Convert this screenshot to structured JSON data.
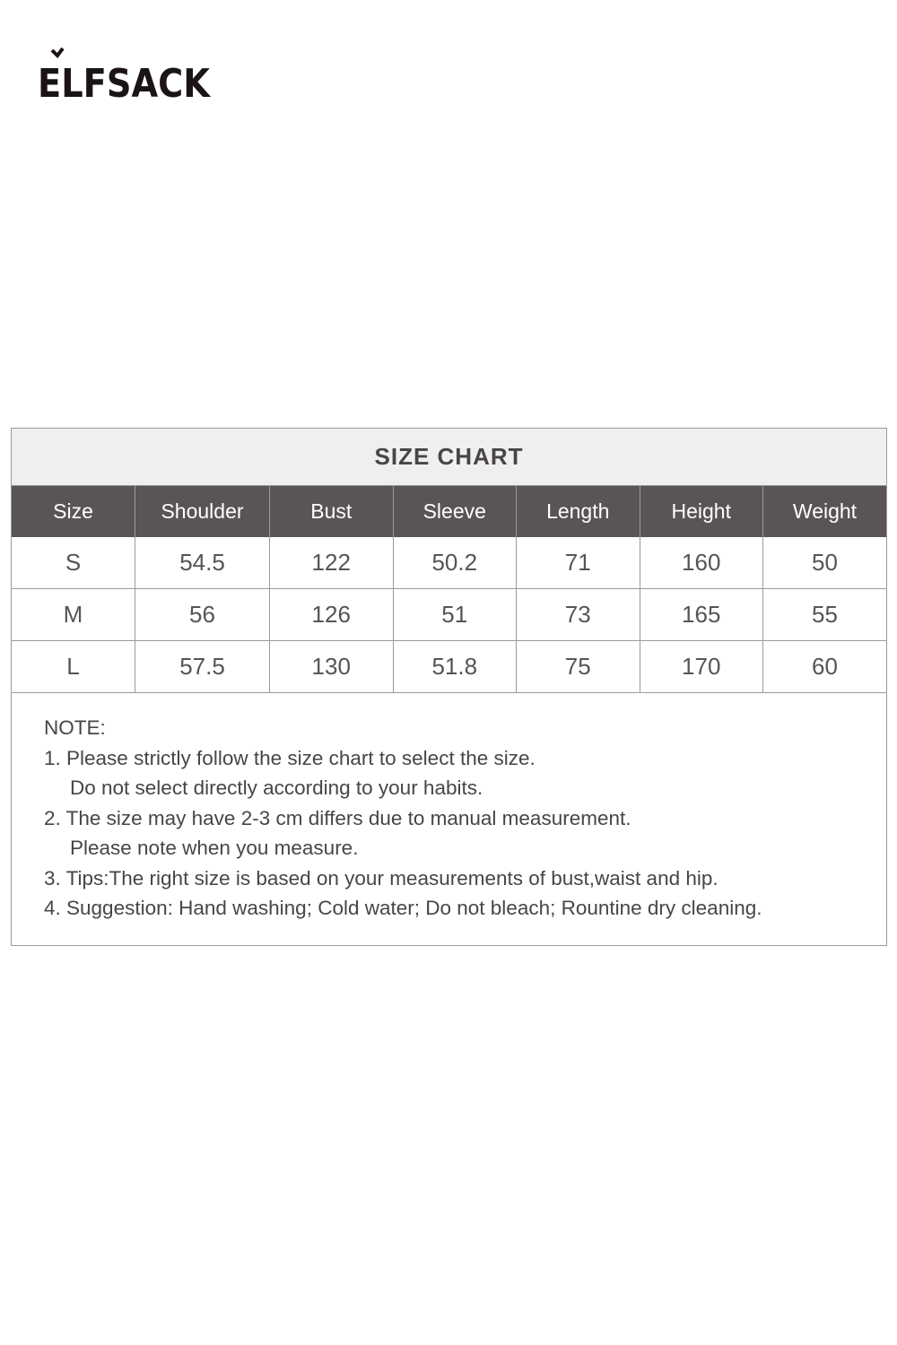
{
  "brand": {
    "logo_text": "ELFSACK"
  },
  "size_chart": {
    "title": "SIZE CHART",
    "columns": [
      "Size",
      "Shoulder",
      "Bust",
      "Sleeve",
      "Length",
      "Height",
      "Weight"
    ],
    "rows": [
      [
        "S",
        "54.5",
        "122",
        "50.2",
        "71",
        "160",
        "50"
      ],
      [
        "M",
        "56",
        "126",
        "51",
        "73",
        "165",
        "55"
      ],
      [
        "L",
        "57.5",
        "130",
        "51.8",
        "75",
        "170",
        "60"
      ]
    ]
  },
  "notes": {
    "heading": "NOTE:",
    "lines": [
      "1. Please strictly follow the size chart to select the size.",
      "Do not select directly according to your habits.",
      "2. The size may have 2-3 cm differs due to manual measurement.",
      "Please note when you measure.",
      "3. Tips:The right size is based on your measurements of bust,waist and hip.",
      "4. Suggestion: Hand washing; Cold water; Do not bleach; Rountine dry cleaning."
    ]
  },
  "colors": {
    "header_bg": "#5a5554",
    "title_bg": "#efefef",
    "text": "#4a4545"
  }
}
